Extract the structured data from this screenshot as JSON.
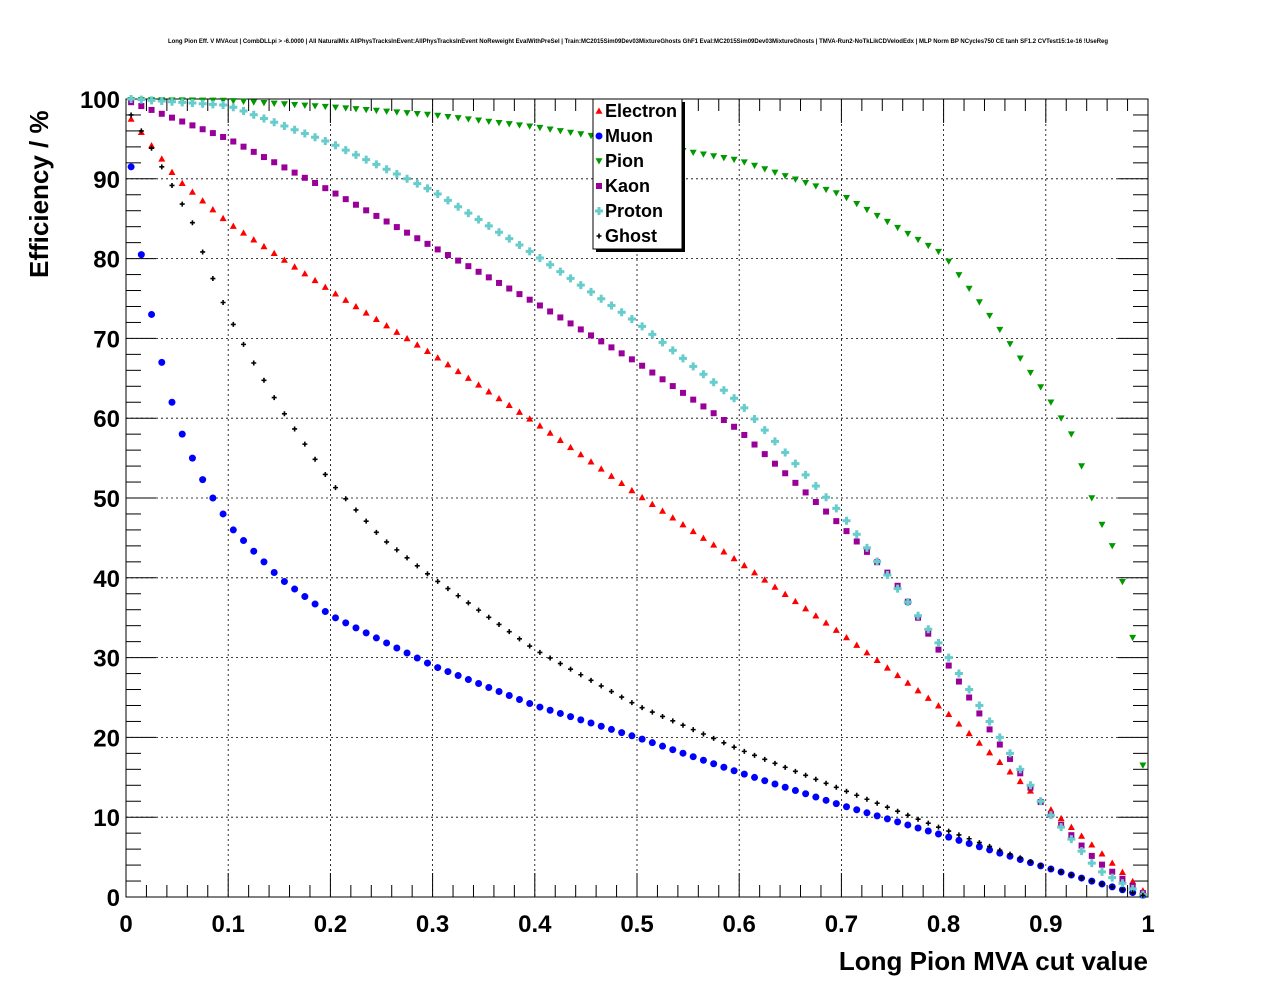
{
  "chart_data": {
    "type": "scatter",
    "title": "Long Pion Eff. V MVAcut | CombDLLpi > -6.0000 | All NaturalMix AllPhysTracksInEvent:AllPhysTracksInEvent NoReweight EvalWithPreSel | Train:MC2015Sim09Dev03MixtureGhosts GhF1 Eval:MC2015Sim09Dev03MixtureGhosts | TMVA-Run2-NoTkLikCDVelodEdx | MLP Norm BP NCycles750 CE tanh SF1.2 CVTest15:1e-16 !UseReg",
    "xlabel": "Long Pion MVA cut value",
    "ylabel": "Efficiency / %",
    "xlim": [
      0,
      1
    ],
    "ylim": [
      0,
      100
    ],
    "x_ticks": [
      "0",
      "0.1",
      "0.2",
      "0.3",
      "0.4",
      "0.5",
      "0.6",
      "0.7",
      "0.8",
      "0.9",
      "1"
    ],
    "y_ticks": [
      "0",
      "10",
      "20",
      "30",
      "40",
      "50",
      "60",
      "70",
      "80",
      "90",
      "100"
    ],
    "grid": true,
    "legend_position": "top-center",
    "x_step": 0.01,
    "series": [
      {
        "name": "Electron",
        "color": "#ff0000",
        "marker": "triangle-up",
        "keypoints": [
          [
            0.005,
            97.5
          ],
          [
            0.05,
            90
          ],
          [
            0.1,
            84.5
          ],
          [
            0.2,
            76
          ],
          [
            0.3,
            68
          ],
          [
            0.4,
            59.5
          ],
          [
            0.5,
            50.5
          ],
          [
            0.6,
            42
          ],
          [
            0.7,
            33
          ],
          [
            0.8,
            23.5
          ],
          [
            0.9,
            11.5
          ],
          [
            0.95,
            6
          ],
          [
            0.995,
            0.8
          ]
        ]
      },
      {
        "name": "Muon",
        "color": "#0000ff",
        "marker": "circle",
        "keypoints": [
          [
            0.005,
            91.5
          ],
          [
            0.015,
            80.5
          ],
          [
            0.025,
            73
          ],
          [
            0.035,
            67
          ],
          [
            0.045,
            62
          ],
          [
            0.055,
            58
          ],
          [
            0.065,
            55
          ],
          [
            0.075,
            52.3
          ],
          [
            0.085,
            50
          ],
          [
            0.095,
            48
          ],
          [
            0.105,
            46
          ],
          [
            0.15,
            40
          ],
          [
            0.2,
            35.3
          ],
          [
            0.3,
            29
          ],
          [
            0.4,
            24
          ],
          [
            0.5,
            20
          ],
          [
            0.6,
            15.6
          ],
          [
            0.7,
            11.5
          ],
          [
            0.8,
            7.7
          ],
          [
            0.9,
            3.7
          ],
          [
            0.95,
            1.8
          ],
          [
            0.995,
            0.2
          ]
        ]
      },
      {
        "name": "Pion",
        "color": "#009900",
        "marker": "triangle-down",
        "keypoints": [
          [
            0.005,
            99.9
          ],
          [
            0.1,
            99.8
          ],
          [
            0.2,
            99
          ],
          [
            0.3,
            98
          ],
          [
            0.4,
            96.5
          ],
          [
            0.5,
            94.5
          ],
          [
            0.6,
            92.3
          ],
          [
            0.7,
            88
          ],
          [
            0.8,
            80.5
          ],
          [
            0.85,
            72
          ],
          [
            0.9,
            63
          ],
          [
            0.925,
            58
          ],
          [
            0.95,
            48
          ],
          [
            0.965,
            44
          ],
          [
            0.975,
            39.5
          ],
          [
            0.985,
            32.5
          ],
          [
            0.995,
            16.5
          ]
        ]
      },
      {
        "name": "Kaon",
        "color": "#990099",
        "marker": "square",
        "keypoints": [
          [
            0.005,
            99.6
          ],
          [
            0.1,
            95
          ],
          [
            0.2,
            88.5
          ],
          [
            0.3,
            81.5
          ],
          [
            0.4,
            74.5
          ],
          [
            0.5,
            67
          ],
          [
            0.6,
            58.5
          ],
          [
            0.7,
            46.5
          ],
          [
            0.75,
            40
          ],
          [
            0.8,
            30
          ],
          [
            0.85,
            20
          ],
          [
            0.9,
            11
          ],
          [
            0.95,
            4.5
          ],
          [
            0.995,
            0.5
          ]
        ]
      },
      {
        "name": "Proton",
        "color": "#66cccc",
        "marker": "cross",
        "keypoints": [
          [
            0.005,
            100
          ],
          [
            0.1,
            99.2
          ],
          [
            0.2,
            94.5
          ],
          [
            0.3,
            88.5
          ],
          [
            0.4,
            80.5
          ],
          [
            0.5,
            72
          ],
          [
            0.6,
            62
          ],
          [
            0.7,
            48
          ],
          [
            0.8,
            31
          ],
          [
            0.85,
            21
          ],
          [
            0.9,
            11
          ],
          [
            0.95,
            3.5
          ],
          [
            0.995,
            0.3
          ]
        ]
      },
      {
        "name": "Ghost",
        "color": "#000000",
        "marker": "small-cross",
        "keypoints": [
          [
            0.005,
            98
          ],
          [
            0.02,
            95
          ],
          [
            0.035,
            91.5
          ],
          [
            0.05,
            88
          ],
          [
            0.065,
            84.5
          ],
          [
            0.08,
            79
          ],
          [
            0.1,
            73
          ],
          [
            0.12,
            68
          ],
          [
            0.15,
            61.5
          ],
          [
            0.2,
            52
          ],
          [
            0.25,
            45
          ],
          [
            0.3,
            40
          ],
          [
            0.4,
            31
          ],
          [
            0.5,
            24
          ],
          [
            0.6,
            18.5
          ],
          [
            0.7,
            13.5
          ],
          [
            0.8,
            8.5
          ],
          [
            0.9,
            3.7
          ],
          [
            0.95,
            1.8
          ],
          [
            0.995,
            0.2
          ]
        ]
      }
    ]
  }
}
